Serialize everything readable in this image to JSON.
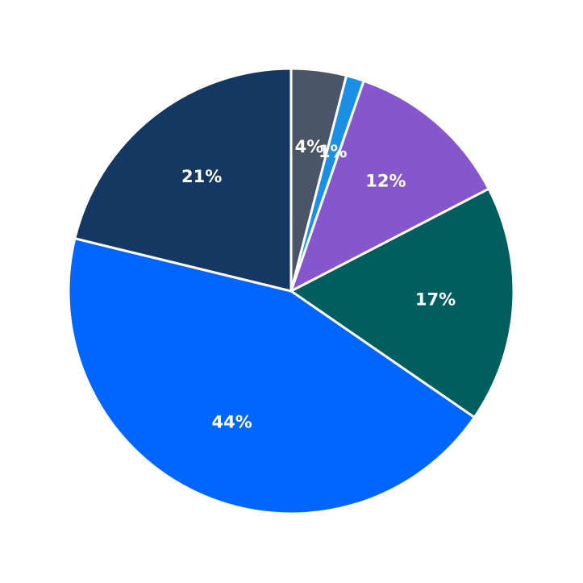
{
  "chart_data": {
    "type": "pie",
    "categories": [
      null,
      null,
      null,
      null,
      null,
      null
    ],
    "values": [
      4.0,
      1.3,
      12.1,
      17.2,
      44.2,
      21.2
    ],
    "value_labels": [
      "4%",
      "1%",
      "12%",
      "17%",
      "44%",
      "21%"
    ],
    "colors": [
      "#4a5565",
      "#1a8fe3",
      "#8657cc",
      "#005e5e",
      "#0066ff",
      "#143861"
    ]
  }
}
